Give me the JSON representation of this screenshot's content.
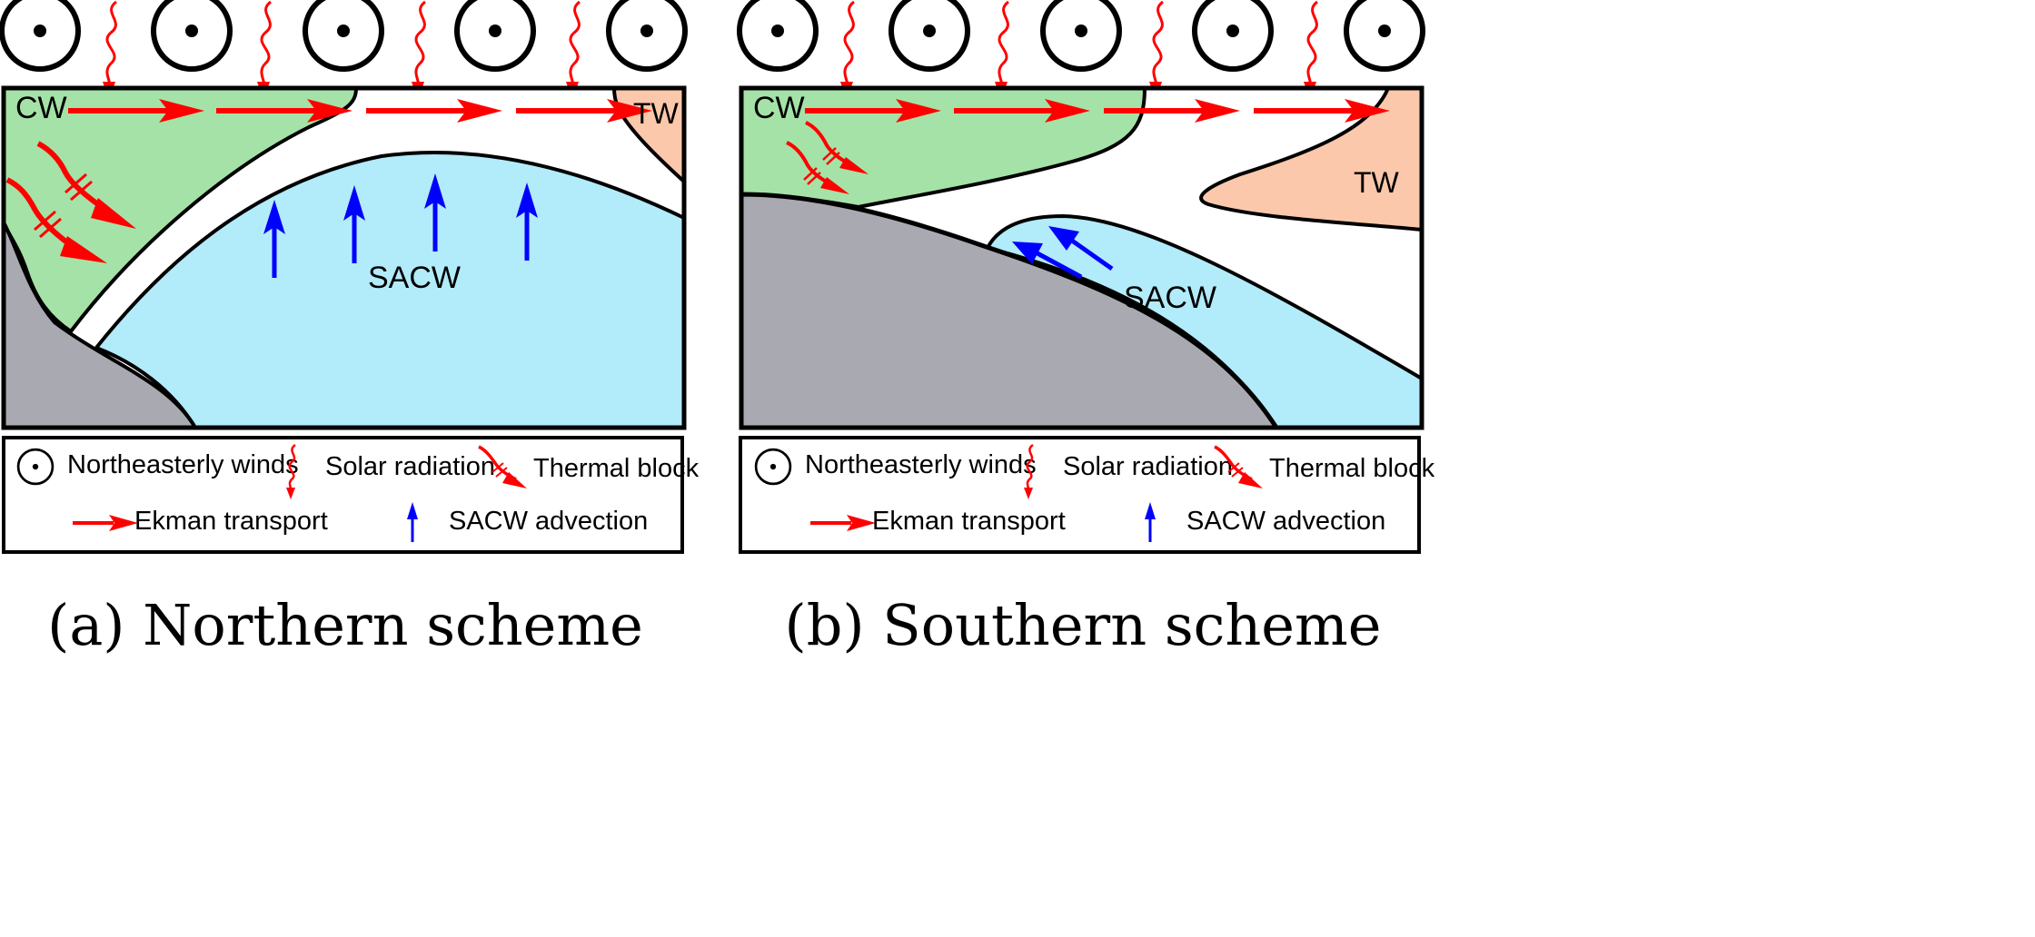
{
  "panels": [
    {
      "caption": "(a) Northern scheme",
      "labels": {
        "cw": "CW",
        "tw": "TW",
        "sacw": "SACW"
      },
      "legend": {
        "winds": "Northeasterly winds",
        "solar": "Solar radiation",
        "thermal": "Thermal block",
        "ekman": "Ekman transport",
        "advection": "SACW advection"
      }
    },
    {
      "caption": "(b) Southern scheme",
      "labels": {
        "cw": "CW",
        "tw": "TW",
        "sacw": "SACW"
      },
      "legend": {
        "winds": "Northeasterly winds",
        "solar": "Solar radiation",
        "thermal": "Thermal block",
        "ekman": "Ekman transport",
        "advection": "SACW advection"
      }
    }
  ],
  "colors": {
    "cw": "#a5e2a7",
    "tw": "#fbc8ab",
    "sacw": "#b2ebf9",
    "land": "#a9a9b1",
    "red": "#ff0000",
    "blue": "#0000ff"
  },
  "icons": {
    "winds": "circled-dot-icon",
    "solar": "wavy-down-arrow-icon",
    "thermal": "blocked-arrow-icon",
    "ekman": "right-arrow-icon",
    "advection": "up-arrow-icon"
  }
}
